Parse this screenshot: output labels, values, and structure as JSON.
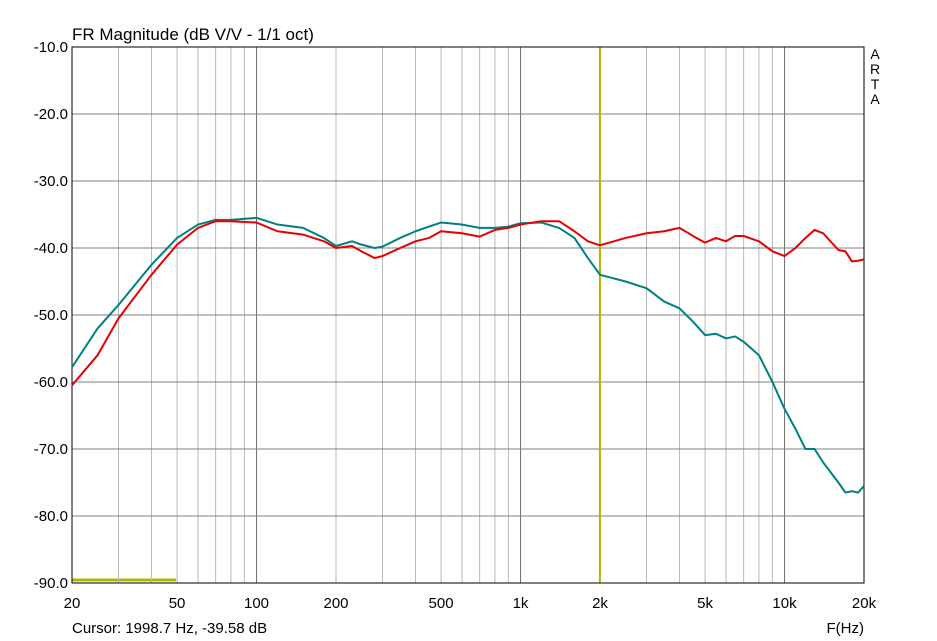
{
  "chart_data": {
    "type": "line",
    "title": "FR Magnitude (dB V/V - 1/1 oct)",
    "x_label": "F(Hz)",
    "watermark": "ARTA",
    "cursor_label": "Cursor: 1998.7 Hz, -39.58 dB",
    "cursor_x": 1998.7,
    "cursor_color": "#b4b400",
    "xlog": true,
    "grid": true,
    "xlim": [
      20,
      20000
    ],
    "ylim": [
      -90,
      -10
    ],
    "xticks": [
      20,
      50,
      100,
      200,
      500,
      {
        "value": 1000,
        "label": "1k"
      },
      {
        "value": 2000,
        "label": "2k"
      },
      {
        "value": 5000,
        "label": "5k"
      },
      {
        "value": 10000,
        "label": "10k"
      },
      {
        "value": 20000,
        "label": "20k"
      }
    ],
    "xgrid": [
      30,
      40,
      60,
      70,
      80,
      90,
      300,
      400,
      600,
      700,
      800,
      900,
      3000,
      4000,
      6000,
      7000,
      8000,
      9000
    ],
    "yticks": [
      {
        "value": -90,
        "label": "-90.0"
      },
      {
        "value": -80,
        "label": "-80.0"
      },
      {
        "value": -70,
        "label": "-70.0"
      },
      {
        "value": -60,
        "label": "-60.0"
      },
      {
        "value": -50,
        "label": "-50.0"
      },
      {
        "value": -40,
        "label": "-40.0"
      },
      {
        "value": -30,
        "label": "-30.0"
      },
      {
        "value": -20,
        "label": "-20.0"
      },
      {
        "value": -10,
        "label": "-10.0"
      }
    ],
    "x": [
      20,
      25,
      30,
      40,
      50,
      60,
      70,
      80,
      100,
      120,
      150,
      180,
      200,
      230,
      250,
      280,
      300,
      350,
      400,
      450,
      500,
      600,
      700,
      800,
      900,
      1000,
      1200,
      1400,
      1600,
      1800,
      2000,
      2500,
      3000,
      3500,
      4000,
      4500,
      5000,
      5500,
      6000,
      6500,
      7000,
      8000,
      9000,
      10000,
      11000,
      12000,
      13000,
      14000,
      16000,
      17000,
      18000,
      19000,
      20000
    ],
    "series": [
      {
        "color": "#008080",
        "values": [
          -57.8,
          -52,
          -48.5,
          -42.5,
          -38.5,
          -36.5,
          -35.8,
          -35.8,
          -35.5,
          -36.5,
          -37,
          -38.5,
          -39.7,
          -39,
          -39.5,
          -40,
          -39.8,
          -38.5,
          -37.5,
          -36.8,
          -36.2,
          -36.5,
          -37,
          -37,
          -36.8,
          -36.3,
          -36.2,
          -37,
          -38.5,
          -41.5,
          -44,
          -45,
          -46,
          -48,
          -49,
          -51,
          -53,
          -52.8,
          -53.5,
          -53.2,
          -54,
          -56,
          -60,
          -64,
          -67,
          -70,
          -70,
          -72,
          -75,
          -76.5,
          -76.3,
          -76.5,
          -75.5
        ]
      },
      {
        "color": "#e80000",
        "values": [
          -60.5,
          -56,
          -50.5,
          -44,
          -39.5,
          -37,
          -36,
          -36,
          -36.2,
          -37.5,
          -38,
          -39,
          -40,
          -39.7,
          -40.5,
          -41.5,
          -41.2,
          -40,
          -39,
          -38.5,
          -37.5,
          -37.8,
          -38.3,
          -37.3,
          -37,
          -36.5,
          -36,
          -36,
          -37.5,
          -39,
          -39.6,
          -38.5,
          -37.8,
          -37.5,
          -37,
          -38.2,
          -39.2,
          -38.5,
          -39,
          -38.2,
          -38.2,
          -39,
          -40.5,
          -41.2,
          -40,
          -38.5,
          -37.3,
          -37.8,
          -40.3,
          -40.5,
          -42,
          -41.9,
          -41.7
        ]
      }
    ]
  }
}
